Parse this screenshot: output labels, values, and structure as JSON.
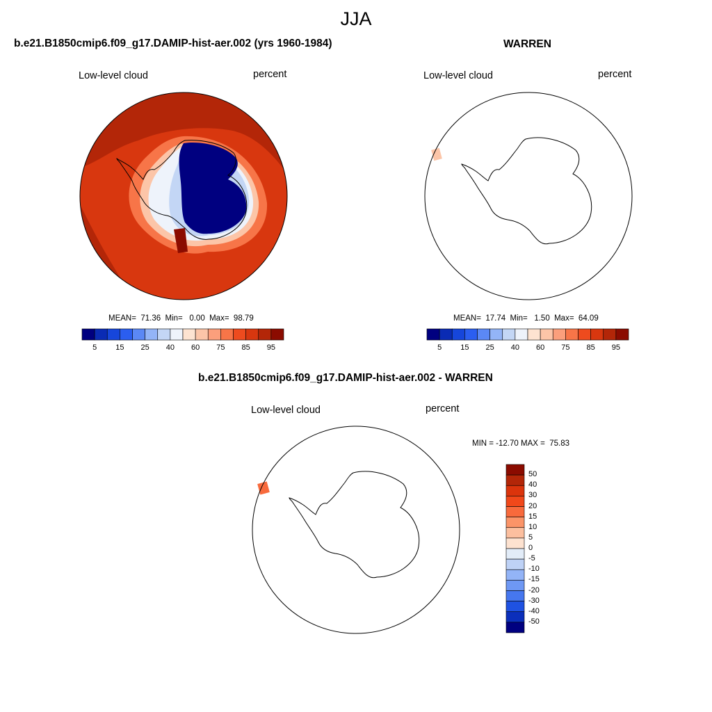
{
  "main_title": "JJA",
  "panels": [
    {
      "title": "b.e21.B1850cmip6.f09_g17.DAMIP-hist-aer.002 (yrs 1960-1984)",
      "left_label": "Low-level cloud",
      "right_label": "percent",
      "stats": "MEAN=  71.36  Min=   0.00  Max=  98.79",
      "colorbar_ticks": [
        "5",
        "15",
        "25",
        "40",
        "60",
        "75",
        "85",
        "95"
      ]
    },
    {
      "title": "WARREN",
      "left_label": "Low-level cloud",
      "right_label": "percent",
      "stats": "MEAN=  17.74  Min=   1.50  Max=  64.09",
      "colorbar_ticks": [
        "5",
        "15",
        "25",
        "40",
        "60",
        "75",
        "85",
        "95"
      ]
    },
    {
      "title": "b.e21.B1850cmip6.f09_g17.DAMIP-hist-aer.002 - WARREN",
      "left_label": "Low-level cloud",
      "right_label": "percent",
      "stats": "MIN = -12.70 MAX =  75.83",
      "colorbar_ticks": [
        "50",
        "40",
        "30",
        "20",
        "15",
        "10",
        "5",
        "0",
        "-5",
        "-10",
        "-15",
        "-20",
        "-30",
        "-40",
        "-50"
      ]
    }
  ],
  "colors": {
    "seq_scale": [
      "#000080",
      "#0a2bb4",
      "#1646db",
      "#2b5ef0",
      "#5b88f5",
      "#93b4f7",
      "#c3d6f5",
      "#eef3fb",
      "#fde3d1",
      "#fcc5a8",
      "#fb9f7c",
      "#f77548",
      "#ee4b1e",
      "#d8370f",
      "#b32608",
      "#8b0b00"
    ],
    "diff_scale": [
      "#8b0b00",
      "#b32608",
      "#db340c",
      "#f1481a",
      "#f86a3c",
      "#fb9468",
      "#fcbf9f",
      "#fde2d0",
      "#e2ecf8",
      "#bed2f6",
      "#93b4f7",
      "#6e98f4",
      "#4677ef",
      "#1f52e2",
      "#0b2fbb",
      "#000080"
    ]
  }
}
